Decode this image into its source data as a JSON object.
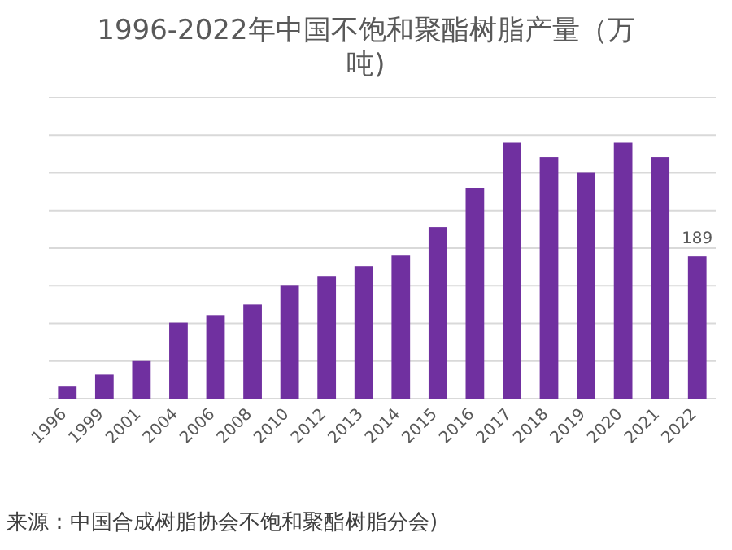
{
  "chart_data": {
    "type": "bar",
    "title": "1996-2022年中国不饱和聚酯树脂产量（万吨)",
    "categories": [
      "1996",
      "1999",
      "2001",
      "2004",
      "2006",
      "2008",
      "2010",
      "2012",
      "2013",
      "2014",
      "2015",
      "2016",
      "2017",
      "2018",
      "2019",
      "2020",
      "2021",
      "2022"
    ],
    "values": [
      16,
      32,
      50,
      101,
      111,
      125,
      151,
      163,
      176,
      190,
      228,
      280,
      340,
      321,
      300,
      340,
      321,
      189
    ],
    "value_labels": [
      null,
      null,
      null,
      null,
      null,
      null,
      null,
      null,
      null,
      null,
      null,
      null,
      null,
      null,
      null,
      null,
      null,
      "189"
    ],
    "color": "#7030a0",
    "ylim": [
      0,
      400
    ],
    "yticks": [
      {
        "value": 0,
        "label": null
      },
      {
        "value": 50,
        "label": null
      },
      {
        "value": 100,
        "label": null
      },
      {
        "value": 150,
        "label": null
      },
      {
        "value": 200,
        "label": null
      },
      {
        "value": 250,
        "label": null
      },
      {
        "value": 300,
        "label": null
      },
      {
        "value": 350,
        "label": null
      },
      {
        "value": 400,
        "label": null
      }
    ],
    "tick_labels": "x",
    "grid": "y",
    "annotations": [
      "来源：中国合成树脂协会不饱和聚酯树脂分会)"
    ]
  }
}
